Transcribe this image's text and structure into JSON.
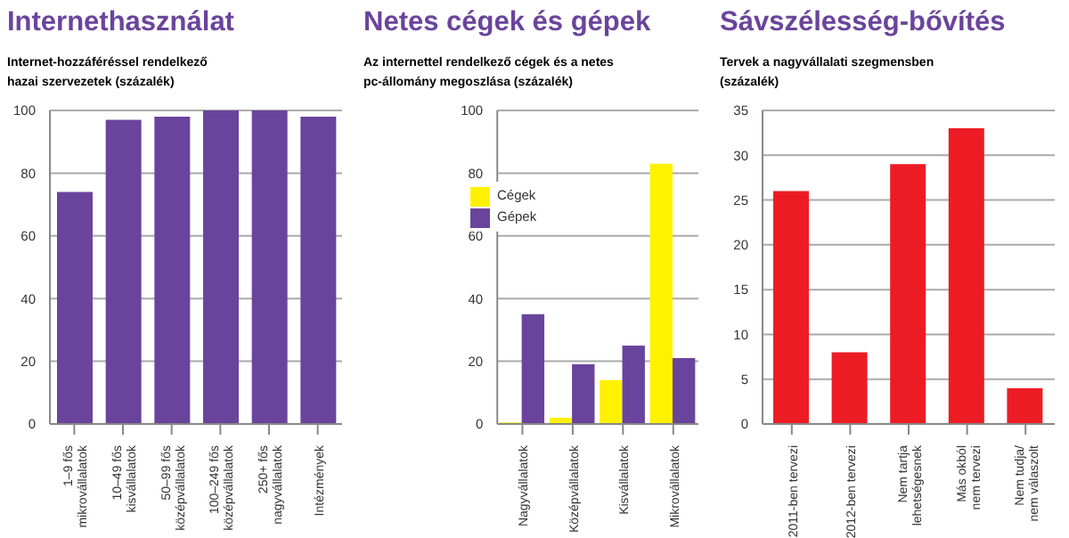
{
  "chart_data": [
    {
      "type": "bar",
      "title": "Internethasználat",
      "subtitle": "Internet-hozzáféréssel rendelkező\nhazai szervezetek (százalék)",
      "categories": [
        "1–9 fős\nmikrovállalatok",
        "10–49 fős\nkisvállalatok",
        "50–99 fős\nközépvállalatok",
        "100–249 fős\nközépvállalatok",
        "250+ fős\nnagyvállalatok",
        "Intézmények"
      ],
      "series": [
        {
          "color": "#6a449c",
          "values": [
            74,
            97,
            98,
            100,
            100,
            98
          ]
        }
      ],
      "ylim": [
        0,
        100
      ],
      "yticks": [
        0,
        20,
        40,
        60,
        80,
        100
      ],
      "grid": "y",
      "legend": false
    },
    {
      "type": "bar",
      "title": "Netes cégek és gépek",
      "subtitle": "Az internettel rendelkező cégek és a netes\npc-állomány megoszlása (százalék)",
      "categories": [
        "Nagyvállalatok",
        "Középvállalatok",
        "Kisvállalatok",
        "Mikrovállalatok"
      ],
      "series": [
        {
          "name": "Cégek",
          "color": "#fff200",
          "values": [
            0.5,
            2,
            14,
            83
          ]
        },
        {
          "name": "Gépek",
          "color": "#6a449c",
          "values": [
            35,
            19,
            25,
            21
          ]
        }
      ],
      "ylim": [
        0,
        100
      ],
      "yticks": [
        0,
        20,
        40,
        60,
        80,
        100
      ],
      "grid": "y",
      "legend": "top left"
    },
    {
      "type": "bar",
      "title": "Sávszélesség-bővítés",
      "subtitle": "Tervek a nagyvállalati szegmensben\n(százalék)",
      "categories": [
        "2011-ben tervezi",
        "2012-ben tervezi",
        "Nem tartja\nlehetségesnek",
        "Más okból\nnem tervezi",
        "Nem tudja/\nnem válaszolt"
      ],
      "series": [
        {
          "color": "#ed1c24",
          "values": [
            26,
            8,
            29,
            33,
            4
          ]
        }
      ],
      "ylim": [
        0,
        35
      ],
      "yticks": [
        0,
        5,
        10,
        15,
        20,
        25,
        30,
        35
      ],
      "grid": "y",
      "legend": false
    }
  ]
}
